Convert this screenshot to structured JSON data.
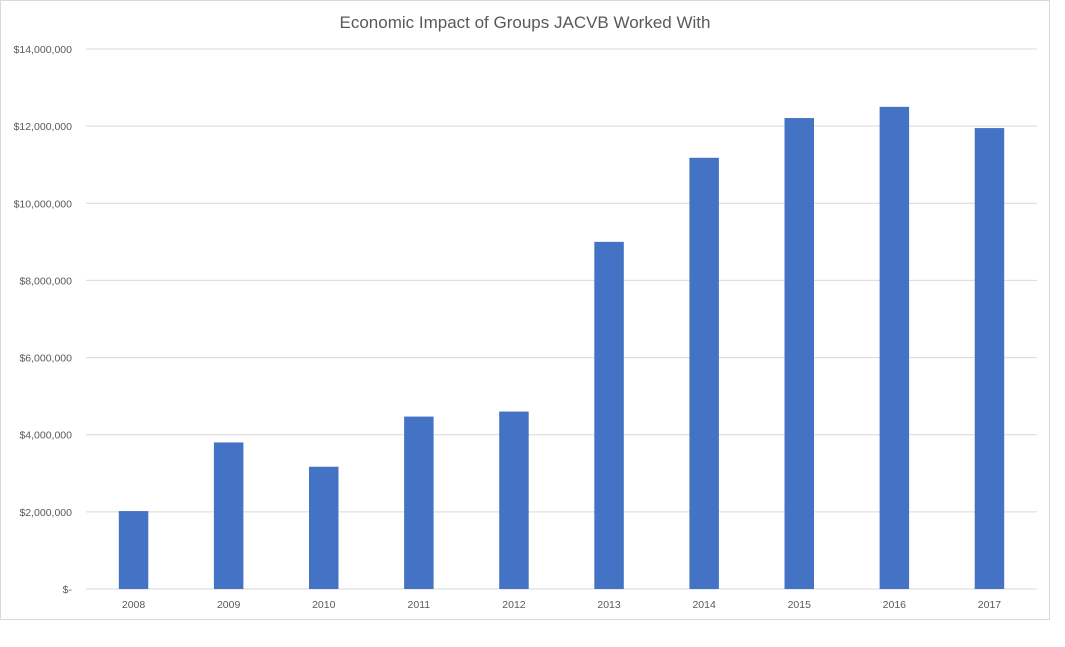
{
  "chart_data": {
    "type": "bar",
    "title": "Economic Impact of Groups JACVB Worked With",
    "xlabel": "",
    "ylabel": "",
    "categories": [
      "2008",
      "2009",
      "2010",
      "2011",
      "2012",
      "2013",
      "2014",
      "2015",
      "2016",
      "2017"
    ],
    "values": [
      2020000,
      3800000,
      3170000,
      4470000,
      4600000,
      9000000,
      11180000,
      12210000,
      12500000,
      11950000
    ],
    "ylim": [
      0,
      14000000
    ],
    "yticks": [
      0,
      2000000,
      4000000,
      6000000,
      8000000,
      10000000,
      12000000,
      14000000
    ],
    "ytick_labels": [
      "$-",
      "$2,000,000",
      "$4,000,000",
      "$6,000,000",
      "$8,000,000",
      "$10,000,000",
      "$12,000,000",
      "$14,000,000"
    ],
    "grid": true,
    "legend": "none",
    "bar_color": "#4472c4",
    "grid_color": "#d9d9d9"
  }
}
